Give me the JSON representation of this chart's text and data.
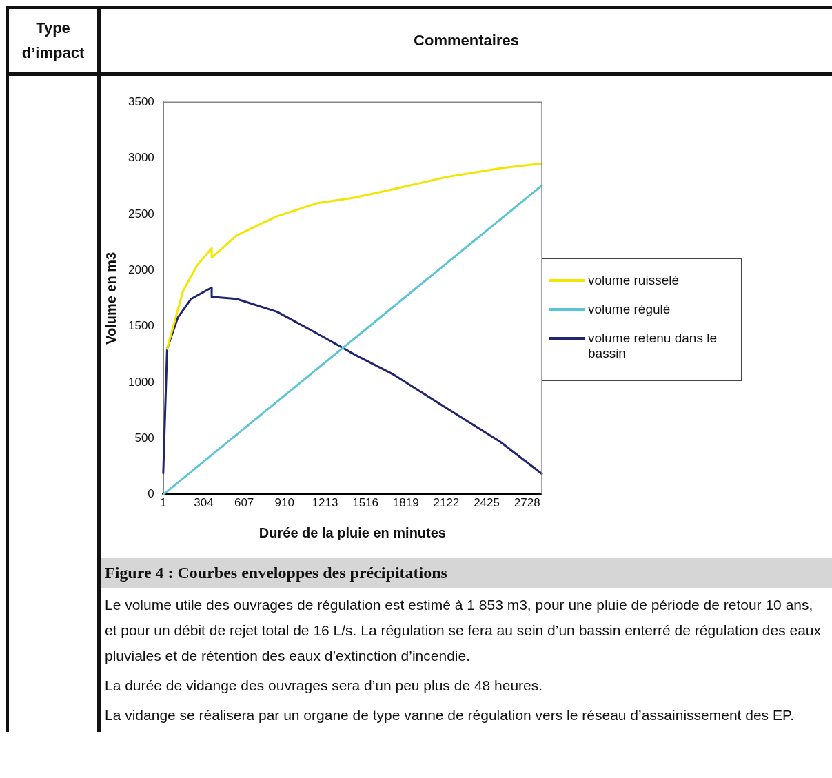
{
  "chart_data": {
    "type": "line",
    "title": "Figure 4 : Courbes enveloppes des précipitations",
    "xlabel": "Durée de la pluie en minutes",
    "ylabel": "Volume en m3",
    "annotations": [
      "Type d’impact",
      "Commentaires",
      "Le volume utile des ouvrages de régulation est estimé à 1 853 m3, pour une pluie de période de retour 10 ans, et pour un débit de rejet total de 16 L/s. La régulation se fera au sein d’un bassin enterré de régulation des eaux pluviales et de rétention des eaux d’extinction d’incendie.",
      "La durée de vidange des ouvrages sera d’un peu plus de 48 heures.",
      "La vidange se réalisera par un organe de type vanne de régulation vers le réseau d’assainissement des EP."
    ],
    "xlim": [
      1,
      2838
    ],
    "xticks": [
      1,
      304,
      607,
      910,
      1213,
      1516,
      1819,
      2122,
      2425,
      2728
    ],
    "ylim": [
      0,
      3500
    ],
    "yticks": [
      0,
      500,
      1000,
      1500,
      2000,
      2500,
      3000,
      3500
    ],
    "grid": false,
    "legend": "right",
    "marker": "none",
    "line_style": "solid",
    "series": [
      {
        "name": "volume ruisselé",
        "color": "#f2e600",
        "x": [
          30,
          149,
          254,
          364,
          364,
          551,
          853,
          1150,
          1436,
          1728,
          2124,
          2526,
          2838
        ],
        "values": [
          1300,
          1814,
          2043,
          2196,
          2113,
          2311,
          2482,
          2597,
          2648,
          2724,
          2832,
          2909,
          2953
        ]
      },
      {
        "name": "volume régulé",
        "color": "#5bc5d5",
        "x": [
          1,
          2838
        ],
        "values": [
          0,
          2756
        ]
      },
      {
        "name": "volume retenu dans le bassin",
        "color": "#23246e",
        "x": [
          1,
          30,
          111,
          210,
          364,
          364,
          551,
          853,
          1150,
          1436,
          1728,
          2124,
          2526,
          2838
        ],
        "values": [
          190,
          1300,
          1580,
          1745,
          1846,
          1763,
          1745,
          1630,
          1439,
          1248,
          1069,
          770,
          471,
          185
        ]
      }
    ]
  }
}
